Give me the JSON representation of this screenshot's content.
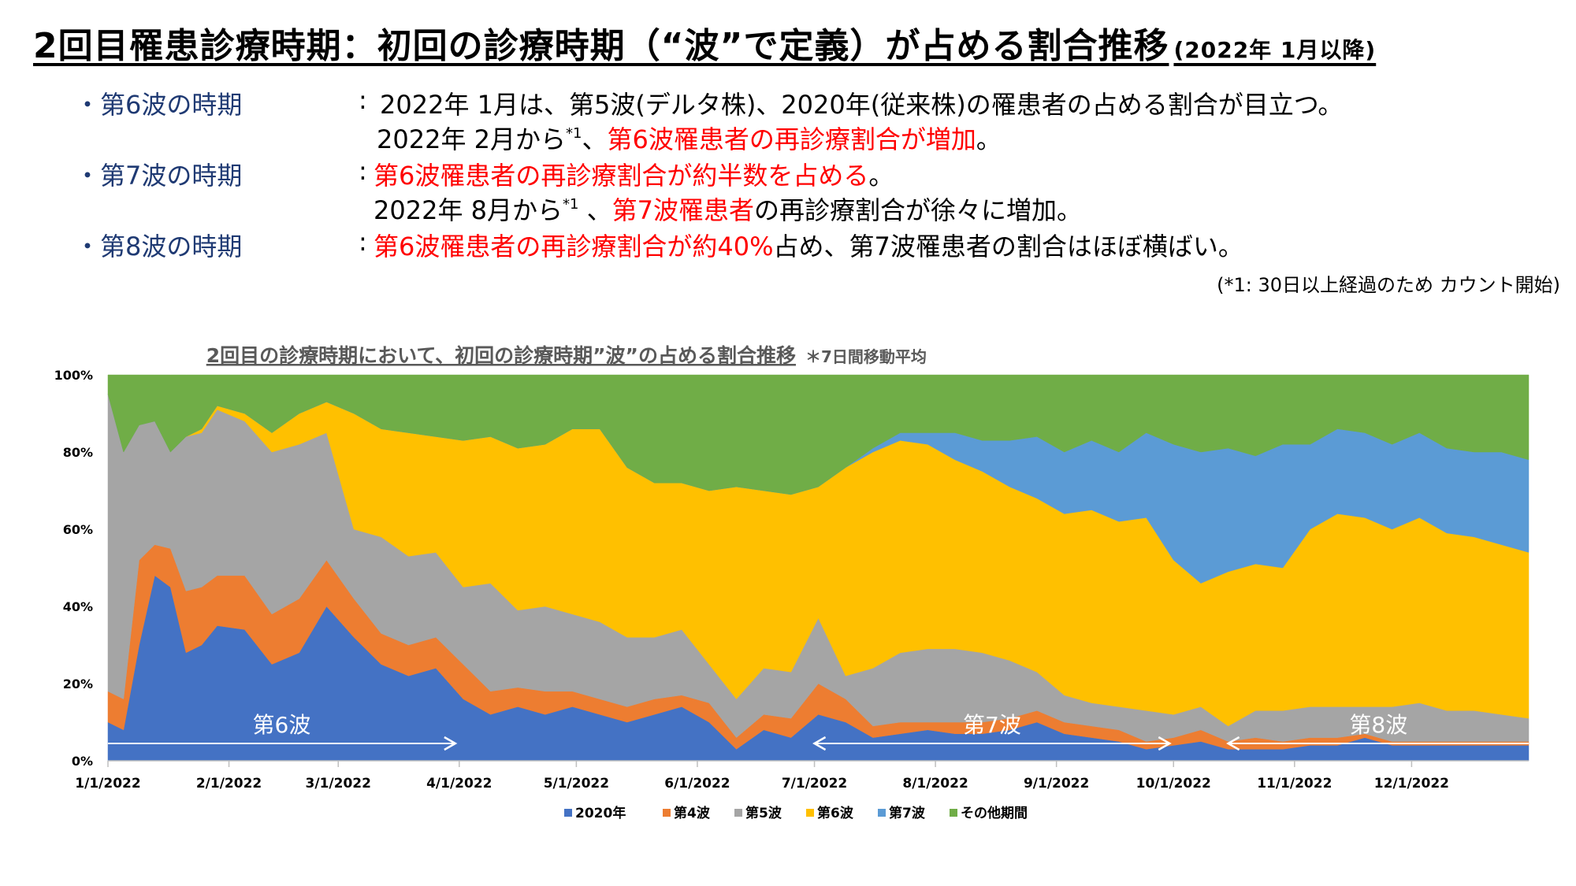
{
  "page_title": "2回目罹患診療時期：初回の診療時期（“波”で定義）が占める割合推移",
  "page_title_sub": "(2022年 1月以降)",
  "bullets": [
    {
      "label": "・第6波の時期",
      "colon": ":",
      "lines": [
        {
          "a": "2022年 1月は、第5波(デルタ株)、2020年(従来株)の罹患者の占める割合が目立つ。",
          "b": "",
          "c": "",
          "sup": ""
        },
        {
          "a": "2022年 2月から",
          "sup": "*1",
          "b": "、",
          "red": "第6波罹患者の再診療割合が増加",
          "c": "。"
        }
      ]
    },
    {
      "label": "・第7波の時期",
      "colon": ":",
      "lines": [
        {
          "a": "",
          "sup": "",
          "b": "",
          "red": "第6波罹患者の再診療割合が約半数を占める",
          "c": "。"
        },
        {
          "a": "2022年 8月から",
          "sup": "*1",
          "b": " 、",
          "red": "第7波罹患者",
          "c": "の再診療割合が徐々に増加。"
        }
      ]
    },
    {
      "label": "・第8波の時期",
      "colon": ":",
      "lines": [
        {
          "a": "",
          "sup": "",
          "b": "",
          "red": "第6波罹患者の再診療割合が約40%",
          "c": "占め、第7波罹患者の割合はほぼ横ばい。"
        }
      ]
    }
  ],
  "footnote": "(*1: 30日以上経過のため カウント開始)",
  "chart_data": {
    "type": "area",
    "stacked": true,
    "title": "2回目の診療時期において、初回の診療時期”波”の占める割合推移",
    "title_note": "＊7日間移動平均",
    "xlabel": "",
    "ylabel": "",
    "ylim": [
      0,
      100
    ],
    "y_ticks": [
      "0%",
      "20%",
      "40%",
      "60%",
      "80%",
      "100%"
    ],
    "x_ticks": [
      "1/1/2022",
      "2/1/2022",
      "3/1/2022",
      "4/1/2022",
      "5/1/2022",
      "6/1/2022",
      "7/1/2022",
      "8/1/2022",
      "9/1/2022",
      "10/1/2022",
      "11/1/2022",
      "12/1/2022"
    ],
    "x_start": "2022-01-01",
    "x_end": "2022-12-31",
    "legend_position": "bottom",
    "dates": [
      "2022-01-01",
      "2022-01-05",
      "2022-01-09",
      "2022-01-13",
      "2022-01-17",
      "2022-01-21",
      "2022-01-25",
      "2022-01-29",
      "2022-02-05",
      "2022-02-12",
      "2022-02-19",
      "2022-02-26",
      "2022-03-05",
      "2022-03-12",
      "2022-03-19",
      "2022-03-26",
      "2022-04-02",
      "2022-04-09",
      "2022-04-16",
      "2022-04-23",
      "2022-04-30",
      "2022-05-07",
      "2022-05-14",
      "2022-05-21",
      "2022-05-28",
      "2022-06-04",
      "2022-06-11",
      "2022-06-18",
      "2022-06-25",
      "2022-07-02",
      "2022-07-09",
      "2022-07-16",
      "2022-07-23",
      "2022-07-30",
      "2022-08-06",
      "2022-08-13",
      "2022-08-20",
      "2022-08-27",
      "2022-09-03",
      "2022-09-10",
      "2022-09-17",
      "2022-09-24",
      "2022-10-01",
      "2022-10-08",
      "2022-10-15",
      "2022-10-22",
      "2022-10-29",
      "2022-11-05",
      "2022-11-12",
      "2022-11-19",
      "2022-11-26",
      "2022-12-03",
      "2022-12-10",
      "2022-12-17",
      "2022-12-24",
      "2022-12-31"
    ],
    "series": [
      {
        "name": "2020年",
        "color": "#4472c4",
        "values": [
          10,
          8,
          30,
          48,
          45,
          28,
          30,
          35,
          34,
          25,
          28,
          40,
          32,
          25,
          22,
          24,
          16,
          12,
          14,
          12,
          14,
          12,
          10,
          12,
          14,
          10,
          3,
          8,
          6,
          12,
          10,
          6,
          7,
          8,
          7,
          7,
          8,
          10,
          7,
          6,
          5,
          3,
          4,
          5,
          3,
          3,
          3,
          4,
          4,
          6,
          4,
          4,
          4,
          4,
          4,
          4
        ]
      },
      {
        "name": "第4波",
        "color": "#ed7d31",
        "values": [
          8,
          8,
          22,
          8,
          10,
          16,
          15,
          13,
          14,
          13,
          14,
          12,
          10,
          8,
          8,
          8,
          9,
          6,
          5,
          6,
          4,
          4,
          4,
          4,
          3,
          5,
          3,
          4,
          5,
          8,
          6,
          3,
          3,
          2,
          3,
          3,
          3,
          3,
          3,
          3,
          3,
          2,
          2,
          3,
          2,
          3,
          2,
          2,
          2,
          1,
          1,
          1,
          1,
          1,
          1,
          1
        ]
      },
      {
        "name": "第5波",
        "color": "#a5a5a5",
        "values": [
          77,
          64,
          35,
          32,
          25,
          40,
          40,
          43,
          40,
          42,
          40,
          33,
          18,
          25,
          23,
          22,
          20,
          28,
          20,
          22,
          20,
          20,
          18,
          16,
          17,
          10,
          10,
          12,
          12,
          17,
          6,
          15,
          18,
          19,
          19,
          18,
          15,
          10,
          7,
          6,
          6,
          8,
          6,
          6,
          4,
          7,
          8,
          8,
          8,
          7,
          9,
          10,
          8,
          8,
          7,
          6
        ]
      },
      {
        "name": "第6波",
        "color": "#ffc000",
        "values": [
          0,
          0,
          0,
          0,
          0,
          0,
          1,
          1,
          2,
          5,
          8,
          8,
          30,
          28,
          32,
          30,
          38,
          38,
          42,
          42,
          48,
          50,
          44,
          40,
          38,
          45,
          55,
          46,
          46,
          34,
          54,
          56,
          55,
          53,
          49,
          47,
          45,
          45,
          47,
          50,
          48,
          50,
          40,
          32,
          40,
          38,
          37,
          46,
          50,
          49,
          46,
          48,
          46,
          45,
          44,
          43
        ]
      },
      {
        "name": "第7波",
        "color": "#5b9bd5",
        "values": [
          0,
          0,
          0,
          0,
          0,
          0,
          0,
          0,
          0,
          0,
          0,
          0,
          0,
          0,
          0,
          0,
          0,
          0,
          0,
          0,
          0,
          0,
          0,
          0,
          0,
          0,
          0,
          0,
          0,
          0,
          0,
          1,
          2,
          3,
          7,
          8,
          12,
          16,
          16,
          18,
          18,
          22,
          30,
          34,
          32,
          28,
          32,
          22,
          22,
          22,
          22,
          22,
          22,
          22,
          24,
          24
        ]
      },
      {
        "name": "その他期間",
        "color": "#70ad47",
        "values": [
          5,
          20,
          13,
          12,
          20,
          16,
          14,
          8,
          10,
          15,
          10,
          7,
          10,
          14,
          15,
          16,
          17,
          16,
          19,
          18,
          14,
          14,
          24,
          28,
          28,
          30,
          29,
          30,
          31,
          29,
          24,
          19,
          15,
          15,
          15,
          17,
          17,
          16,
          20,
          17,
          20,
          15,
          18,
          20,
          19,
          21,
          18,
          18,
          14,
          15,
          18,
          15,
          19,
          20,
          20,
          22
        ]
      }
    ],
    "annotations": [
      {
        "text": "第6波",
        "from": "2022-01-01",
        "to": "2022-03-31",
        "direction": "right"
      },
      {
        "text": "第7波",
        "from": "2022-07-01",
        "to": "2022-09-30",
        "direction": "both"
      },
      {
        "text": "第8波",
        "from": "2022-10-15",
        "to": "2022-12-31",
        "direction": "left"
      }
    ]
  }
}
